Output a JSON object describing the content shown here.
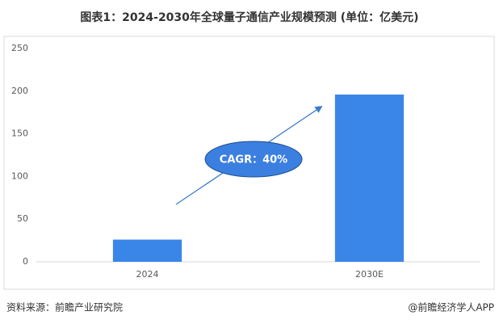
{
  "chart_data": {
    "type": "bar",
    "title": "图表1：2024-2030年全球量子通信产业规模预测 (单位：亿美元)",
    "categories": [
      "2024",
      "2030E"
    ],
    "values": [
      26,
      196
    ],
    "color": "#3a86e8",
    "ylim": [
      0,
      250
    ],
    "yticks": [
      0,
      50,
      100,
      150,
      200,
      250
    ],
    "grid": false,
    "annotation": "CAGR：40%",
    "source": "资料来源：前瞻产业研究院",
    "credit": "@前瞻经济学人APP"
  }
}
